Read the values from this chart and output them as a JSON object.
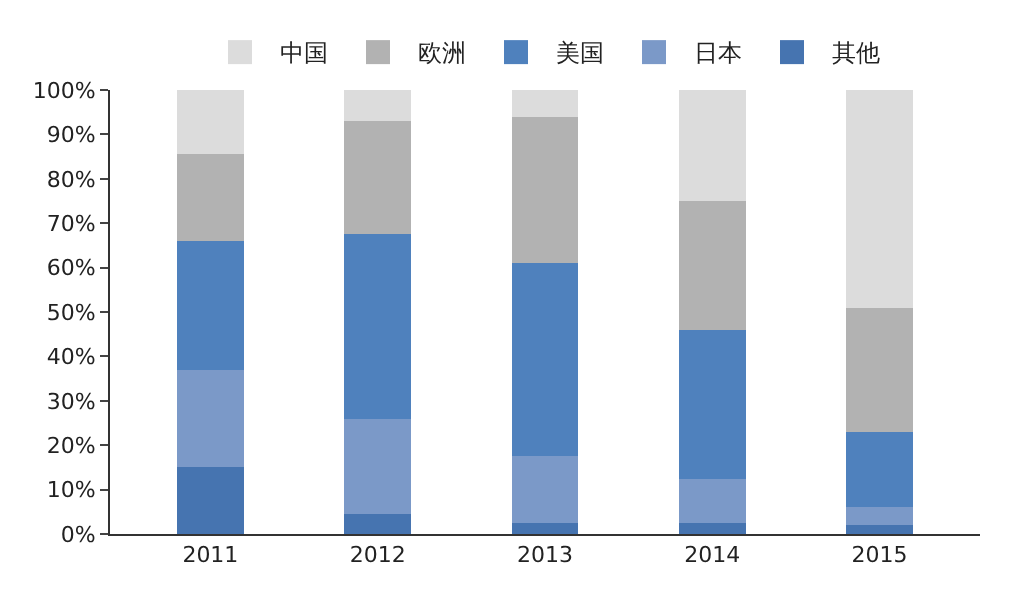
{
  "chart_data": {
    "type": "bar",
    "stacked": true,
    "categories": [
      "2011",
      "2012",
      "2013",
      "2014",
      "2015"
    ],
    "series": [
      {
        "name": "其他",
        "color": "#4674b0",
        "values": [
          15,
          4.5,
          2.5,
          2.5,
          2
        ]
      },
      {
        "name": "日本",
        "color": "#7b99c8",
        "values": [
          22,
          21.5,
          15,
          10,
          4
        ]
      },
      {
        "name": "美国",
        "color": "#4f81bd",
        "values": [
          29,
          41.5,
          43.5,
          33.5,
          17
        ]
      },
      {
        "name": "欧洲",
        "color": "#b2b2b2",
        "values": [
          19.5,
          25.5,
          33,
          29,
          28
        ]
      },
      {
        "name": "中国",
        "color": "#dcdcdc",
        "values": [
          14.5,
          7,
          6,
          25,
          49
        ]
      }
    ],
    "ylim": [
      0,
      100
    ],
    "yticks": [
      {
        "value": 0,
        "label": "0%"
      },
      {
        "value": 10,
        "label": "10%"
      },
      {
        "value": 20,
        "label": "20%"
      },
      {
        "value": 30,
        "label": "30%"
      },
      {
        "value": 40,
        "label": "40%"
      },
      {
        "value": 50,
        "label": "50%"
      },
      {
        "value": 60,
        "label": "60%"
      },
      {
        "value": 70,
        "label": "70%"
      },
      {
        "value": 80,
        "label": "80%"
      },
      {
        "value": 90,
        "label": "90%"
      },
      {
        "value": 100,
        "label": "100%"
      }
    ],
    "legend": "top"
  }
}
